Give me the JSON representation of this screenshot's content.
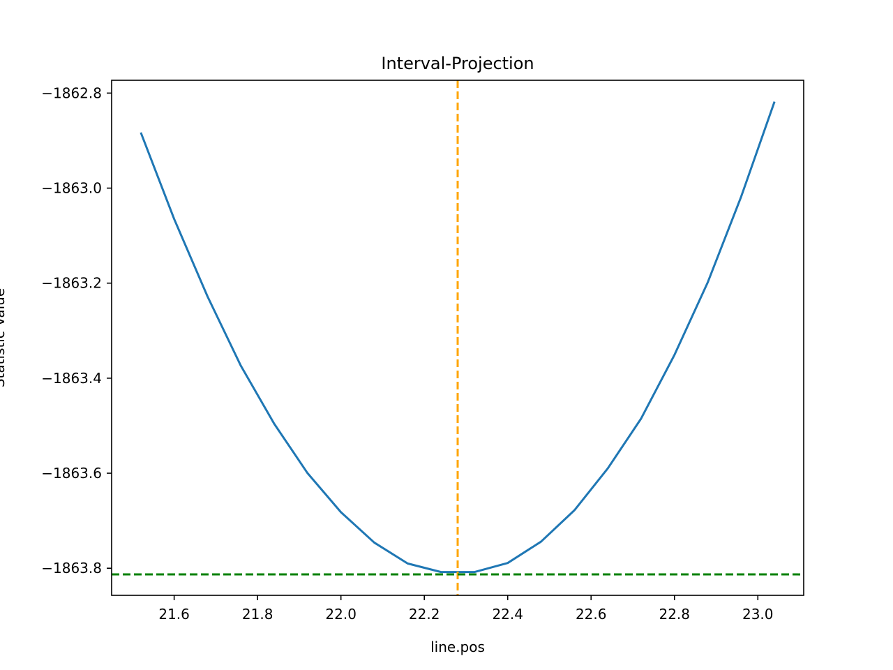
{
  "chart_data": {
    "type": "line",
    "title": "Interval-Projection",
    "xlabel": "line.pos",
    "ylabel": "Statistic Value",
    "xlim": [
      21.45,
      23.11
    ],
    "ylim": [
      -1863.857,
      -1862.773
    ],
    "x_ticks": [
      21.6,
      21.8,
      22.0,
      22.2,
      22.4,
      22.6,
      22.8,
      23.0
    ],
    "x_tick_labels": [
      "21.6",
      "21.8",
      "22.0",
      "22.2",
      "22.4",
      "22.6",
      "22.8",
      "23.0"
    ],
    "y_ticks": [
      -1862.8,
      -1863.0,
      -1863.2,
      -1863.4,
      -1863.6,
      -1863.8
    ],
    "y_tick_labels": [
      "−1862.8",
      "−1863.0",
      "−1863.2",
      "−1863.4",
      "−1863.6",
      "−1863.8"
    ],
    "grid": false,
    "series": [
      {
        "color": "#1f77b4",
        "x": [
          21.52,
          21.6,
          21.68,
          21.76,
          21.84,
          21.92,
          22.0,
          22.08,
          22.16,
          22.24,
          22.32,
          22.4,
          22.48,
          22.56,
          22.64,
          22.72,
          22.8,
          22.88,
          22.96,
          23.04
        ],
        "y": [
          -1862.883,
          -1863.065,
          -1863.228,
          -1863.374,
          -1863.496,
          -1863.6,
          -1863.682,
          -1863.746,
          -1863.79,
          -1863.808,
          -1863.808,
          -1863.789,
          -1863.744,
          -1863.678,
          -1863.59,
          -1863.485,
          -1863.351,
          -1863.198,
          -1863.018,
          -1862.818
        ]
      }
    ],
    "reference_lines": [
      {
        "orientation": "vertical",
        "value": 22.28,
        "color": "#ffa500",
        "style": "dashed"
      },
      {
        "orientation": "horizontal",
        "value": -1863.813,
        "color": "#008000",
        "style": "dashed"
      }
    ]
  }
}
